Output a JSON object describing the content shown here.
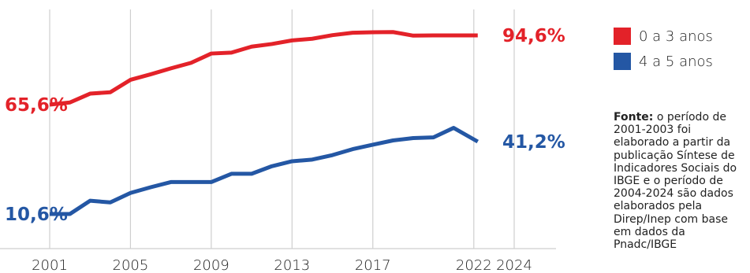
{
  "chart_data": {
    "type": "line",
    "x_ticks": [
      "2001",
      "2005",
      "2009",
      "2013",
      "2017",
      "2022",
      "2024"
    ],
    "xlim": [
      2001,
      2024
    ],
    "series": [
      {
        "name": "0 a 3 anos",
        "color": "#e32229",
        "x": [
          2001,
          2002,
          2003,
          2004,
          2005,
          2006,
          2007,
          2008,
          2009,
          2010,
          2011,
          2012,
          2013,
          2014,
          2015,
          2016,
          2017,
          2018,
          2019,
          2020,
          2021,
          2022
        ],
        "values": [
          65.6,
          66.5,
          70.2,
          70.8,
          76.0,
          78.3,
          80.8,
          83.1,
          87.0,
          87.4,
          89.9,
          91.0,
          92.5,
          93.2,
          94.7,
          95.7,
          95.9,
          96.0,
          94.5,
          94.6,
          94.6,
          94.6
        ],
        "start_label": "65,6%",
        "end_label": "94,6%"
      },
      {
        "name": "4 a 5 anos",
        "color": "#2457a4",
        "x": [
          2001,
          2002,
          2003,
          2004,
          2005,
          2006,
          2007,
          2008,
          2009,
          2010,
          2011,
          2012,
          2013,
          2014,
          2015,
          2016,
          2017,
          2018,
          2019,
          2020,
          2021,
          2022
        ],
        "values": [
          10.6,
          10.6,
          16.2,
          15.5,
          19.5,
          21.9,
          24.1,
          24.1,
          24.1,
          27.6,
          27.6,
          30.8,
          32.9,
          33.6,
          35.5,
          38.0,
          39.9,
          41.7,
          42.7,
          43.0,
          47.0,
          41.2
        ],
        "start_label": "10,6%",
        "end_label": "41,2%"
      }
    ]
  },
  "legend": [
    {
      "label": "0 a 3 anos",
      "color": "#e32229"
    },
    {
      "label": "4 a 5 anos",
      "color": "#2457a4"
    }
  ],
  "note": {
    "label": "Fonte:",
    "text": " o período de 2001-2003 foi elaborado a partir da publicação Síntese de Indicadores Sociais do IBGE e o período de 2004-2024 são dados elaborados pela Direp/Inep com base em dados da Pnadc/IBGE"
  }
}
